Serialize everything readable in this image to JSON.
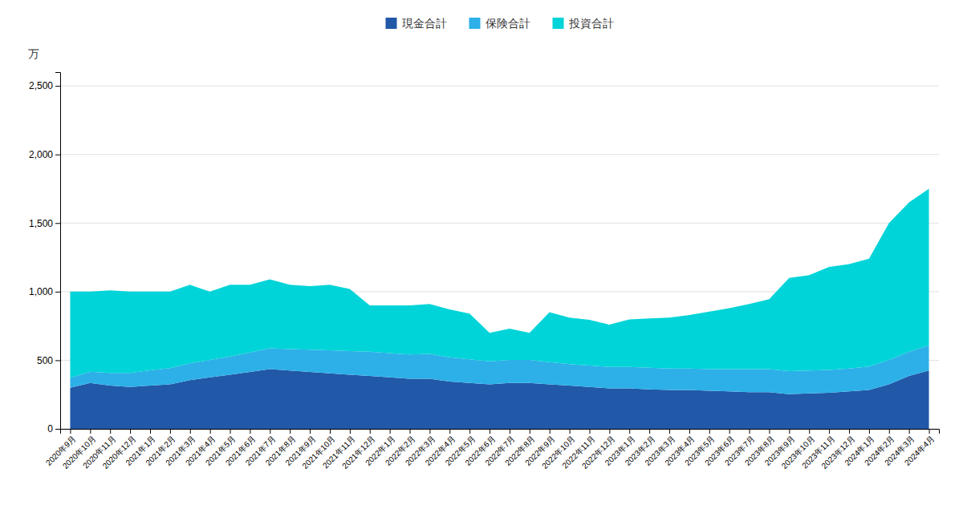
{
  "chart_data": {
    "type": "area",
    "stacked": true,
    "y_label": "万",
    "legend": "top",
    "grid": true,
    "ylim": [
      0,
      2600
    ],
    "yticks": [
      0,
      500,
      {
        "value": 1000,
        "label": "1,000"
      },
      {
        "value": 1500,
        "label": "1,500"
      },
      {
        "value": 2000,
        "label": "2,000"
      },
      {
        "value": 2500,
        "label": "2,500"
      }
    ],
    "categories": [
      "2020年9月",
      "2020年10月",
      "2020年11月",
      "2020年12月",
      "2021年1月",
      "2021年2月",
      "2021年3月",
      "2021年4月",
      "2021年5月",
      "2021年6月",
      "2021年7月",
      "2021年8月",
      "2021年9月",
      "2021年10月",
      "2021年11月",
      "2021年12月",
      "2022年1月",
      "2022年2月",
      "2022年3月",
      "2022年4月",
      "2022年5月",
      "2022年6月",
      "2022年7月",
      "2022年8月",
      "2022年9月",
      "2022年10月",
      "2022年11月",
      "2022年12月",
      "2023年1月",
      "2023年2月",
      "2023年3月",
      "2023年4月",
      "2023年5月",
      "2023年6月",
      "2023年7月",
      "2023年8月",
      "2023年9月",
      "2023年10月",
      "2023年11月",
      "2023年12月",
      "2024年1月",
      "2024年2月",
      "2024年3月",
      "2024年4月"
    ],
    "series": [
      {
        "name": "現金合計",
        "color": "#2158a8",
        "values": [
          300,
          335,
          315,
          305,
          315,
          325,
          355,
          375,
          395,
          415,
          435,
          425,
          415,
          405,
          395,
          385,
          375,
          365,
          365,
          345,
          335,
          325,
          335,
          335,
          325,
          315,
          305,
          295,
          295,
          288,
          283,
          283,
          278,
          273,
          268,
          268,
          253,
          258,
          263,
          273,
          283,
          325,
          385,
          425
        ]
      },
      {
        "name": "保険合計",
        "color": "#2db0e8",
        "values": [
          72,
          82,
          92,
          102,
          112,
          117,
          122,
          127,
          132,
          142,
          152,
          157,
          162,
          167,
          172,
          177,
          177,
          177,
          182,
          177,
          172,
          167,
          167,
          167,
          162,
          157,
          157,
          157,
          157,
          157,
          157,
          157,
          157,
          162,
          167,
          167,
          167,
          167,
          167,
          167,
          172,
          177,
          177,
          182
        ]
      },
      {
        "name": "投資合計",
        "color": "#00d4d8",
        "values": [
          628,
          583,
          603,
          593,
          573,
          558,
          573,
          498,
          523,
          493,
          503,
          468,
          463,
          478,
          453,
          338,
          348,
          358,
          363,
          348,
          333,
          208,
          228,
          198,
          363,
          338,
          333,
          308,
          346,
          360,
          370,
          390,
          420,
          445,
          475,
          510,
          680,
          695,
          750,
          760,
          785,
          998,
          1088,
          1143
        ]
      }
    ]
  }
}
